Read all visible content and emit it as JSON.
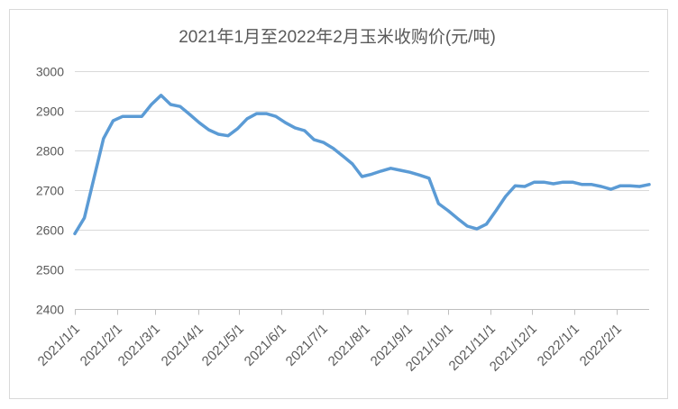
{
  "chart_data": {
    "type": "line",
    "title": "2021年1月至2022年2月玉米收购价(元/吨)",
    "ylim": [
      2400,
      3000
    ],
    "yticks": [
      2400,
      2500,
      2600,
      2700,
      2800,
      2900,
      3000
    ],
    "xlim": [
      "2021/1/1",
      "2022/2/25"
    ],
    "xticks": [
      "2021/1/1",
      "2021/2/1",
      "2021/3/1",
      "2021/4/1",
      "2021/5/1",
      "2021/6/1",
      "2021/7/1",
      "2021/8/1",
      "2021/9/1",
      "2021/10/1",
      "2021/11/1",
      "2021/12/1",
      "2022/1/1",
      "2022/2/1"
    ],
    "grid": "horizontal",
    "legend": "none",
    "colors": {
      "series": "#5b9bd5"
    },
    "x": [
      "2021/1/1",
      "2021/1/8",
      "2021/1/15",
      "2021/1/22",
      "2021/1/29",
      "2021/2/5",
      "2021/2/12",
      "2021/2/19",
      "2021/2/26",
      "2021/3/5",
      "2021/3/12",
      "2021/3/19",
      "2021/3/26",
      "2021/4/2",
      "2021/4/9",
      "2021/4/16",
      "2021/4/23",
      "2021/4/30",
      "2021/5/7",
      "2021/5/14",
      "2021/5/21",
      "2021/5/28",
      "2021/6/4",
      "2021/6/11",
      "2021/6/18",
      "2021/6/25",
      "2021/7/2",
      "2021/7/9",
      "2021/7/16",
      "2021/7/23",
      "2021/7/30",
      "2021/8/6",
      "2021/8/13",
      "2021/8/20",
      "2021/8/27",
      "2021/9/3",
      "2021/9/10",
      "2021/9/17",
      "2021/9/24",
      "2021/10/1",
      "2021/10/8",
      "2021/10/15",
      "2021/10/22",
      "2021/10/29",
      "2021/11/5",
      "2021/11/12",
      "2021/11/19",
      "2021/11/26",
      "2021/12/3",
      "2021/12/10",
      "2021/12/17",
      "2021/12/24",
      "2021/12/31",
      "2022/1/7",
      "2022/1/14",
      "2022/1/21",
      "2022/1/28",
      "2022/2/4",
      "2022/2/11",
      "2022/2/18",
      "2022/2/25"
    ],
    "series": [
      {
        "values": [
          2590,
          2630,
          2730,
          2830,
          2875,
          2886,
          2886,
          2886,
          2916,
          2939,
          2916,
          2911,
          2891,
          2870,
          2852,
          2841,
          2837,
          2855,
          2880,
          2893,
          2893,
          2886,
          2870,
          2857,
          2850,
          2827,
          2820,
          2805,
          2786,
          2766,
          2734,
          2740,
          2748,
          2755,
          2750,
          2745,
          2738,
          2730,
          2666,
          2648,
          2628,
          2609,
          2602,
          2614,
          2648,
          2684,
          2711,
          2709,
          2720,
          2720,
          2716,
          2720,
          2720,
          2714,
          2714,
          2709,
          2702,
          2711,
          2711,
          2709,
          2714
        ]
      }
    ]
  }
}
